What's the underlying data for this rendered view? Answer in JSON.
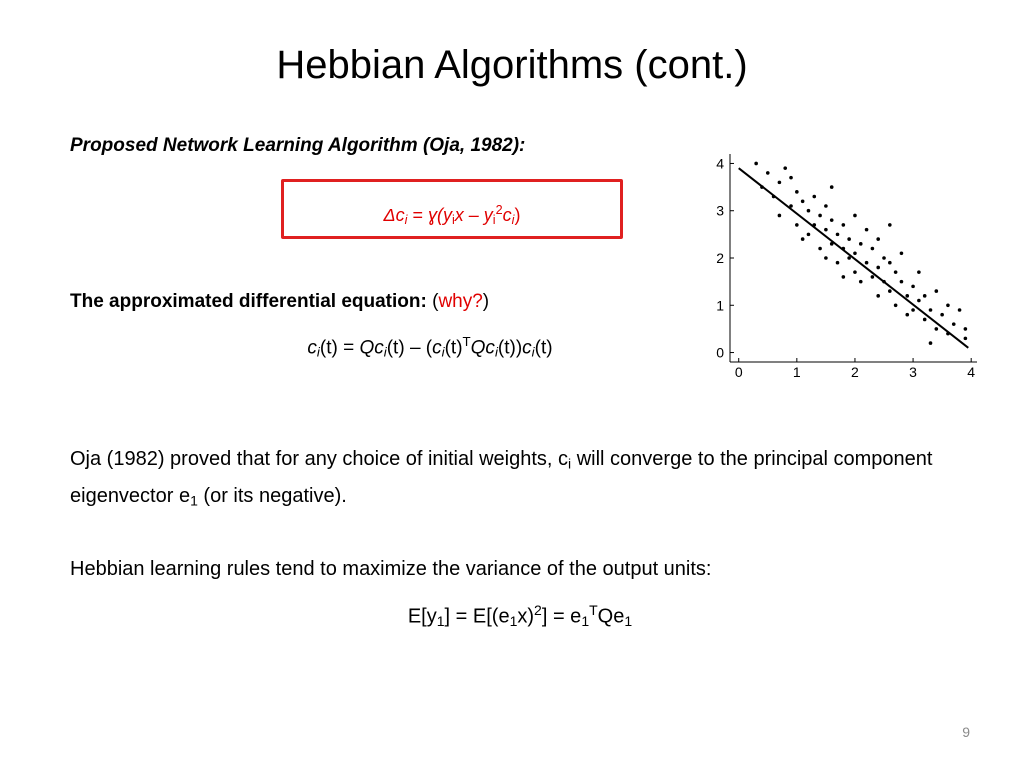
{
  "title": "Hebbian Algorithms (cont.)",
  "subtitle": "Proposed Network Learning Algorithm (Oja, 1982):",
  "rule_formula": [
    {
      "t": "Δc",
      "f": "i"
    },
    {
      "t": "i",
      "f": "i sub"
    },
    {
      "t": " = ",
      "f": ""
    },
    {
      "t": "ɣ(",
      "f": "i"
    },
    {
      "t": "y",
      "f": "i"
    },
    {
      "t": "i",
      "f": "sub"
    },
    {
      "t": "x – y",
      "f": "i"
    },
    {
      "t": "i",
      "f": "sub"
    },
    {
      "t": "2",
      "f": "sup"
    },
    {
      "t": "c",
      "f": "i"
    },
    {
      "t": "i",
      "f": "i sub"
    },
    {
      "t": ")",
      "f": ""
    }
  ],
  "ode_heading": [
    {
      "t": "The approximated differential equation: ",
      "f": "b"
    },
    {
      "t": "(",
      "f": ""
    },
    {
      "t": "why?",
      "f": "red"
    },
    {
      "t": ")",
      "f": ""
    }
  ],
  "ode_formula": [
    {
      "t": "c",
      "f": "i"
    },
    {
      "t": "i",
      "f": "i sub"
    },
    {
      "t": "(t) = ",
      "f": ""
    },
    {
      "t": "Qc",
      "f": "i"
    },
    {
      "t": "i",
      "f": "i sub"
    },
    {
      "t": "(t) – (",
      "f": ""
    },
    {
      "t": "c",
      "f": "i"
    },
    {
      "t": "i",
      "f": "i sub"
    },
    {
      "t": "(t)",
      "f": ""
    },
    {
      "t": "T",
      "f": "sup"
    },
    {
      "t": "Qc",
      "f": "i"
    },
    {
      "t": "i",
      "f": "i sub"
    },
    {
      "t": "(t))",
      "f": ""
    },
    {
      "t": "c",
      "f": "i"
    },
    {
      "t": "i",
      "f": "i sub"
    },
    {
      "t": "(t)",
      "f": ""
    }
  ],
  "paragraph_1": [
    {
      "t": "Oja (1982) proved that for any choice of initial weights, c",
      "f": ""
    },
    {
      "t": "i",
      "f": "sub"
    },
    {
      "t": " will converge to the principal component eigenvector e",
      "f": ""
    },
    {
      "t": "1",
      "f": "sub"
    },
    {
      "t": " (or its negative).",
      "f": ""
    }
  ],
  "paragraph_2": [
    {
      "t": "Hebbian learning rules tend to maximize the variance of the output units:",
      "f": ""
    }
  ],
  "variance_formula": [
    {
      "t": "E[y",
      "f": ""
    },
    {
      "t": "1",
      "f": "sub"
    },
    {
      "t": "] = E[(e",
      "f": ""
    },
    {
      "t": "1",
      "f": "sub"
    },
    {
      "t": "x)",
      "f": ""
    },
    {
      "t": "2",
      "f": "sup"
    },
    {
      "t": "] = e",
      "f": ""
    },
    {
      "t": "1",
      "f": "sub"
    },
    {
      "t": "T",
      "f": "sup"
    },
    {
      "t": "Qe",
      "f": ""
    },
    {
      "t": "1",
      "f": "sub"
    }
  ],
  "page_number": "9",
  "chart_data": {
    "type": "scatter",
    "xlim": [
      -0.15,
      4.1
    ],
    "ylim": [
      -0.2,
      4.2
    ],
    "xticks": [
      0,
      1,
      2,
      3,
      4
    ],
    "yticks": [
      0,
      1,
      2,
      3,
      4
    ],
    "series": [
      {
        "type": "scatter",
        "color": "#000000",
        "x": [
          0.3,
          0.5,
          0.4,
          0.6,
          0.7,
          0.8,
          0.9,
          1.0,
          1.0,
          1.1,
          1.1,
          1.2,
          1.2,
          1.3,
          1.3,
          1.4,
          1.4,
          1.5,
          1.5,
          1.5,
          1.6,
          1.6,
          1.7,
          1.7,
          1.8,
          1.8,
          1.8,
          1.9,
          1.9,
          2.0,
          2.0,
          2.0,
          2.1,
          2.1,
          2.2,
          2.2,
          2.3,
          2.3,
          2.4,
          2.4,
          2.4,
          2.5,
          2.5,
          2.6,
          2.6,
          2.7,
          2.7,
          2.8,
          2.8,
          2.9,
          2.9,
          3.0,
          3.0,
          3.1,
          3.1,
          3.2,
          3.2,
          3.3,
          3.4,
          3.4,
          3.5,
          3.6,
          3.6,
          3.7,
          3.8,
          3.9,
          3.9,
          0.9,
          1.6,
          2.6,
          3.3,
          0.7
        ],
        "values": [
          4.0,
          3.8,
          3.5,
          3.3,
          3.6,
          3.9,
          3.1,
          3.4,
          2.7,
          3.2,
          2.4,
          3.0,
          2.5,
          3.3,
          2.7,
          2.9,
          2.2,
          3.1,
          2.6,
          2.0,
          2.8,
          2.3,
          2.5,
          1.9,
          2.7,
          2.2,
          1.6,
          2.4,
          2.0,
          2.9,
          2.1,
          1.7,
          2.3,
          1.5,
          2.6,
          1.9,
          2.2,
          1.6,
          2.4,
          1.8,
          1.2,
          2.0,
          1.5,
          1.9,
          1.3,
          1.7,
          1.0,
          1.5,
          2.1,
          1.2,
          0.8,
          1.4,
          0.9,
          1.1,
          1.7,
          0.7,
          1.2,
          0.9,
          1.3,
          0.5,
          0.8,
          1.0,
          0.4,
          0.6,
          0.9,
          0.3,
          0.5,
          3.7,
          3.5,
          2.7,
          0.2,
          2.9
        ]
      },
      {
        "type": "line",
        "color": "#000000",
        "x": [
          0,
          3.95
        ],
        "values": [
          3.9,
          0.1
        ]
      }
    ]
  }
}
